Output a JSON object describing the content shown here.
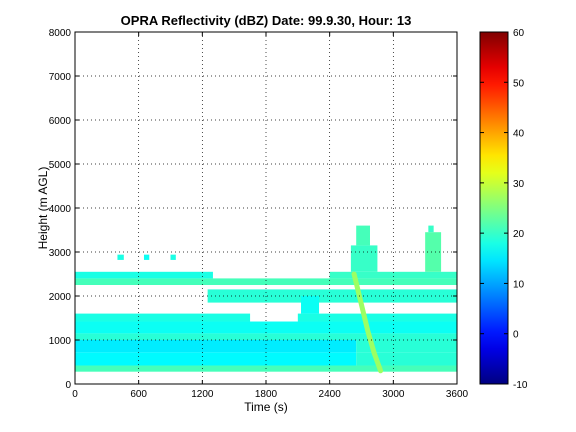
{
  "chart_data": {
    "type": "heatmap",
    "title": "OPRA Reflectivity (dBZ)  Date: 99.9.30, Hour: 13",
    "xlabel": "Time (s)",
    "ylabel": "Height (m AGL)",
    "xlim": [
      0,
      3600
    ],
    "ylim": [
      0,
      8000
    ],
    "xticks": [
      "0",
      "600",
      "1200",
      "1800",
      "2400",
      "3000",
      "3600"
    ],
    "yticks": [
      "0",
      "1000",
      "2000",
      "3000",
      "4000",
      "5000",
      "6000",
      "7000",
      "8000"
    ],
    "grid": true,
    "colorbar": {
      "min": -10,
      "max": 60,
      "ticks": [
        "-10",
        "0",
        "10",
        "20",
        "30",
        "40",
        "50",
        "60"
      ],
      "colormap": "jet"
    },
    "layers": [
      {
        "t": [
          0,
          3600
        ],
        "z": [
          280,
          420
        ],
        "dbz": 21
      },
      {
        "t": [
          0,
          2650
        ],
        "z": [
          420,
          720
        ],
        "dbz": 16
      },
      {
        "t": [
          2650,
          3600
        ],
        "z": [
          420,
          720
        ],
        "dbz": 19
      },
      {
        "t": [
          0,
          2650
        ],
        "z": [
          720,
          1000
        ],
        "dbz": 15
      },
      {
        "t": [
          2650,
          3600
        ],
        "z": [
          720,
          1000
        ],
        "dbz": 19
      },
      {
        "t": [
          0,
          3600
        ],
        "z": [
          1000,
          1150
        ],
        "dbz": 19
      },
      {
        "t": [
          0,
          3600
        ],
        "z": [
          1150,
          1420
        ],
        "dbz": 17
      },
      {
        "t": [
          0,
          1650
        ],
        "z": [
          1420,
          1600
        ],
        "dbz": 18
      },
      {
        "t": [
          2100,
          3600
        ],
        "z": [
          1420,
          1600
        ],
        "dbz": 18
      },
      {
        "t": [
          1250,
          3600
        ],
        "z": [
          1850,
          2150
        ],
        "dbz": 19
      },
      {
        "t": [
          0,
          3600
        ],
        "z": [
          2250,
          2400
        ],
        "dbz": 21
      },
      {
        "t": [
          0,
          1300
        ],
        "z": [
          2400,
          2550
        ],
        "dbz": 18
      },
      {
        "t": [
          2400,
          3600
        ],
        "z": [
          2400,
          2550
        ],
        "dbz": 20
      },
      {
        "t": [
          2600,
          2850
        ],
        "z": [
          2550,
          3150
        ],
        "dbz": 20
      },
      {
        "t": [
          2650,
          2780
        ],
        "z": [
          3150,
          3600
        ],
        "dbz": 21
      },
      {
        "t": [
          3300,
          3450
        ],
        "z": [
          2550,
          3450
        ],
        "dbz": 22
      },
      {
        "t": [
          3330,
          3380
        ],
        "z": [
          3450,
          3600
        ],
        "dbz": 20
      },
      {
        "t": [
          2130,
          2300
        ],
        "z": [
          1600,
          2000
        ],
        "dbz": 17
      },
      {
        "t": [
          400,
          460
        ],
        "z": [
          2820,
          2940
        ],
        "dbz": 18
      },
      {
        "t": [
          650,
          700
        ],
        "z": [
          2820,
          2940
        ],
        "dbz": 17
      },
      {
        "t": [
          900,
          950
        ],
        "z": [
          2820,
          2940
        ],
        "dbz": 18
      }
    ],
    "streak": {
      "points": [
        [
          2630,
          2500
        ],
        [
          2700,
          1800
        ],
        [
          2760,
          1200
        ],
        [
          2820,
          700
        ],
        [
          2880,
          300
        ]
      ],
      "dbz": 27
    }
  }
}
